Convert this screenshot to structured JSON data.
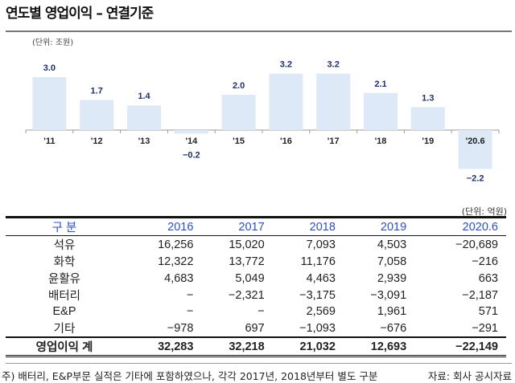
{
  "title": "연도별 영업이익 – 연결기준",
  "chart_data": {
    "type": "bar",
    "unit_label": "(단위: 조원)",
    "categories": [
      "'11",
      "'12",
      "'13",
      "'14",
      "'15",
      "'16",
      "'17",
      "'18",
      "'19",
      "'20.6"
    ],
    "values": [
      3.0,
      1.7,
      1.4,
      -0.2,
      2.0,
      3.2,
      3.2,
      2.1,
      1.3,
      -2.2
    ],
    "value_labels": [
      "3.0",
      "1.7",
      "1.4",
      "−0.2",
      "2.0",
      "3.2",
      "3.2",
      "2.1",
      "1.3",
      "−2.2"
    ],
    "bar_color": "#dde9f6",
    "label_color": "#1f2f6b",
    "grid": false
  },
  "table": {
    "unit_label": "(단위: 억원)",
    "header": [
      "구 분",
      "2016",
      "2017",
      "2018",
      "2019",
      "2020.6"
    ],
    "rows": [
      [
        "석유",
        "16,256",
        "15,020",
        "7,093",
        "4,503",
        "−20,689"
      ],
      [
        "화학",
        "12,322",
        "13,772",
        "11,176",
        "7,058",
        "−216"
      ],
      [
        "윤활유",
        "4,683",
        "5,049",
        "4,463",
        "2,939",
        "663"
      ],
      [
        "배터리",
        "−",
        "−2,321",
        "−3,175",
        "−3,091",
        "−2,187"
      ],
      [
        "E&P",
        "−",
        "−",
        "2,569",
        "1,961",
        "571"
      ],
      [
        "기타",
        "−978",
        "697",
        "−1,093",
        "−676",
        "−291"
      ]
    ],
    "total": [
      "영업이익 계",
      "32,283",
      "32,218",
      "21,032",
      "12,693",
      "−22,149"
    ],
    "header_color": "#2c4fc7"
  },
  "footer": {
    "note": "주) 배터리, E&P부문 실적은 기타에 포함하였으나, 각각 2017년, 2018년부터 별도 구분",
    "source": "자료: 회사 공시자료"
  }
}
